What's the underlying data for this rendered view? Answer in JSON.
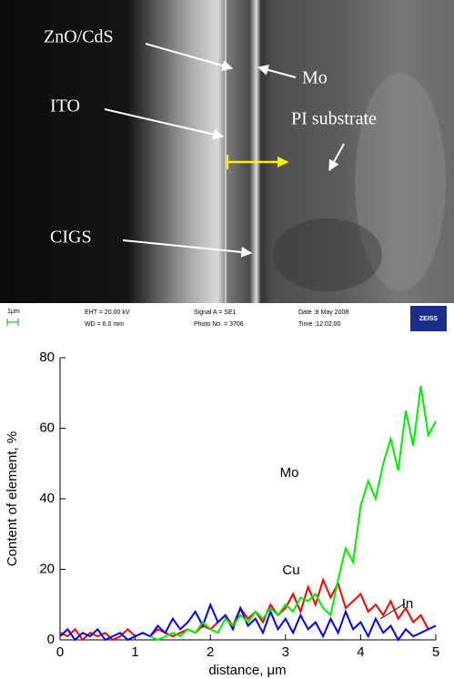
{
  "image": {
    "labels": [
      "ZnO/CdS",
      "Mo",
      "ITO",
      "PI substrate",
      "CIGS"
    ],
    "info_bar": {
      "scale": "1μm",
      "eht": "EHT = 20.00 kV",
      "wd": "WD = 6.0 mm",
      "signal": "Signal A = SE1",
      "photo": "Photo No. = 3706",
      "date": "Date :8 May 2008",
      "time": "Time :12:02:00",
      "brand": "ZEISS"
    }
  },
  "chart_data": {
    "type": "line",
    "x_label": "distance, μm",
    "y_label": "Content of element, %",
    "x": [
      0,
      0.1,
      0.2,
      0.3,
      0.4,
      0.5,
      0.6,
      0.7,
      0.8,
      0.9,
      1,
      1.1,
      1.2,
      1.3,
      1.4,
      1.5,
      1.6,
      1.7,
      1.8,
      1.9,
      2,
      2.1,
      2.2,
      2.3,
      2.4,
      2.5,
      2.6,
      2.7,
      2.8,
      2.9,
      3,
      3.1,
      3.2,
      3.3,
      3.4,
      3.5,
      3.6,
      3.7,
      3.8,
      3.9,
      4,
      4.1,
      4.2,
      4.3,
      4.4,
      4.5,
      4.6,
      4.7,
      4.8,
      4.9,
      5
    ],
    "series": [
      {
        "name": "Cu",
        "color": "#ff0000",
        "values": [
          2,
          1,
          3,
          0,
          2,
          1,
          2,
          0,
          1,
          3,
          1,
          2,
          1,
          3,
          2,
          1,
          2,
          3,
          2,
          4,
          3,
          5,
          7,
          4,
          9,
          6,
          8,
          5,
          10,
          7,
          9,
          13,
          8,
          15,
          10,
          17,
          12,
          16,
          9,
          11,
          13,
          8,
          10,
          7,
          11,
          6,
          9,
          5,
          7,
          3,
          4
        ]
      },
      {
        "name": "In",
        "color": "#0000ff",
        "values": [
          1,
          3,
          0,
          2,
          1,
          3,
          0,
          1,
          2,
          0,
          1,
          2,
          1,
          4,
          2,
          6,
          3,
          5,
          8,
          4,
          10,
          5,
          7,
          3,
          9,
          4,
          6,
          2,
          8,
          3,
          6,
          2,
          7,
          3,
          5,
          1,
          6,
          2,
          8,
          3,
          5,
          1,
          6,
          2,
          4,
          0,
          3,
          1,
          2,
          3,
          4
        ]
      },
      {
        "name": "Mo",
        "color": "#00ee00",
        "values": [
          null,
          null,
          null,
          null,
          null,
          null,
          null,
          null,
          null,
          null,
          null,
          null,
          1,
          0,
          1,
          2,
          1,
          3,
          2,
          5,
          3,
          2,
          6,
          4,
          7,
          5,
          8,
          6,
          9,
          7,
          10,
          8,
          12,
          11,
          13,
          9,
          7,
          17,
          26,
          22,
          38,
          45,
          40,
          50,
          57,
          48,
          65,
          55,
          72,
          58,
          62
        ]
      }
    ],
    "xlim": [
      0,
      5
    ],
    "ylim": [
      0,
      80
    ],
    "xticks": [
      0,
      1,
      2,
      3,
      4,
      5
    ],
    "yticks": [
      0,
      20,
      40,
      60,
      80
    ]
  }
}
